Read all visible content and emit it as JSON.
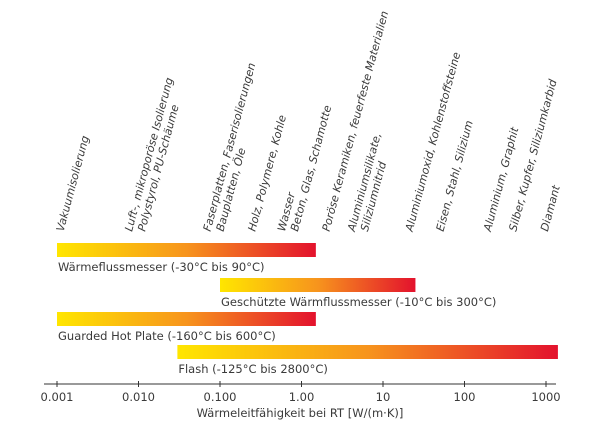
{
  "chart_data": {
    "type": "bar",
    "orientation": "horizontal-range",
    "xscale": "log",
    "xlabel": "Wärmeleitfähigkeit bei RT [W/(m·K)]",
    "xlim": [
      0.001,
      1500
    ],
    "x_ticks": [
      {
        "value": 0.001,
        "label": "0.001"
      },
      {
        "value": 0.01,
        "label": "0.010"
      },
      {
        "value": 0.1,
        "label": "0.100"
      },
      {
        "value": 1,
        "label": "1.00"
      },
      {
        "value": 10,
        "label": "10"
      },
      {
        "value": 100,
        "label": "100"
      },
      {
        "value": 1000,
        "label": "1000"
      }
    ],
    "gradient_colors": [
      "#ffe600",
      "#f7941d",
      "#e3122d"
    ],
    "ranges": [
      {
        "name": "Wärmeflussmesser (-30°C bis 90°C)",
        "min": 0.001,
        "max": 1.5
      },
      {
        "name": "Geschützte Wärmflussmesser (-10°C bis 300°C)",
        "min": 0.1,
        "max": 25
      },
      {
        "name": "Guarded Hot Plate (-160°C bis 600°C)",
        "min": 0.001,
        "max": 1.5
      },
      {
        "name": "Flash (-125°C bis 2800°C)",
        "min": 0.03,
        "max": 1400
      }
    ],
    "materials": [
      {
        "x": 0.0012,
        "lines": [
          "Vakuumisolierung"
        ]
      },
      {
        "x": 0.012,
        "lines": [
          "Luft-, mikroporöse Isolierung",
          "Polystyrol, PU-Schäume"
        ]
      },
      {
        "x": 0.11,
        "lines": [
          "Faserplatten, Faserisolierungen",
          "Bauplatten, Öle"
        ]
      },
      {
        "x": 0.27,
        "lines": [
          "Holz, Polymere, Kohle"
        ]
      },
      {
        "x": 0.9,
        "lines": [
          "Wasser",
          "Beton, Glas, Schamotte"
        ]
      },
      {
        "x": 2.2,
        "lines": [
          "Poröse Keramiken, feuerfeste Materialien"
        ]
      },
      {
        "x": 6.5,
        "lines": [
          "Aluminiumsilikate,",
          "Siliziumnitrid"
        ]
      },
      {
        "x": 23,
        "lines": [
          "Aluminiumoxid, Kohlenstoffsteine"
        ]
      },
      {
        "x": 55,
        "lines": [
          "Eisen, Stahl, Silizium"
        ]
      },
      {
        "x": 210,
        "lines": [
          "Aluminium, Graphit"
        ]
      },
      {
        "x": 430,
        "lines": [
          "Silber, Kupfer, Siliziumkarbid"
        ]
      },
      {
        "x": 1050,
        "lines": [
          "Diamant"
        ]
      }
    ]
  }
}
